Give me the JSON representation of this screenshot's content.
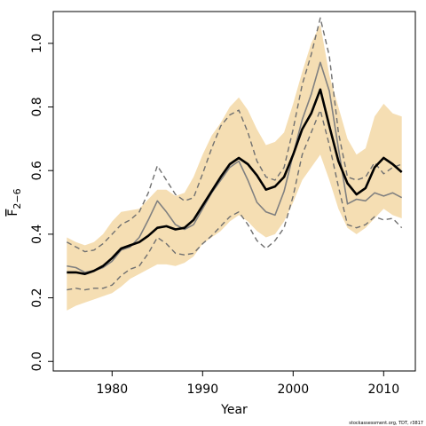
{
  "chart_data": {
    "type": "line",
    "xlabel": "Year",
    "ylabel_main": "F",
    "ylabel_subscript": "2−6",
    "xlim": [
      1973.5,
      2013.5
    ],
    "ylim": [
      -0.03,
      1.1
    ],
    "x_ticks": [
      {
        "value": 1980,
        "label": "1980"
      },
      {
        "value": 1990,
        "label": "1990"
      },
      {
        "value": 2000,
        "label": "2000"
      },
      {
        "value": 2010,
        "label": "2010"
      }
    ],
    "y_ticks": [
      {
        "value": 0.0,
        "label": "0.0"
      },
      {
        "value": 0.2,
        "label": "0.2"
      },
      {
        "value": 0.4,
        "label": "0.4"
      },
      {
        "value": 0.6,
        "label": "0.6"
      },
      {
        "value": 0.8,
        "label": "0.8"
      },
      {
        "value": 1.0,
        "label": "1.0"
      }
    ],
    "x": [
      1975,
      1976,
      1977,
      1978,
      1979,
      1980,
      1981,
      1982,
      1983,
      1984,
      1985,
      1986,
      1987,
      1988,
      1989,
      1990,
      1991,
      1992,
      1993,
      1994,
      1995,
      1996,
      1997,
      1998,
      1999,
      2000,
      2001,
      2002,
      2003,
      2004,
      2005,
      2006,
      2007,
      2008,
      2009,
      2010,
      2011,
      2012
    ],
    "band_upper": [
      0.39,
      0.375,
      0.365,
      0.375,
      0.4,
      0.44,
      0.47,
      0.475,
      0.48,
      0.51,
      0.54,
      0.54,
      0.52,
      0.53,
      0.58,
      0.65,
      0.71,
      0.75,
      0.8,
      0.83,
      0.79,
      0.73,
      0.68,
      0.69,
      0.72,
      0.81,
      0.91,
      1.0,
      1.06,
      0.9,
      0.8,
      0.7,
      0.65,
      0.67,
      0.77,
      0.81,
      0.78,
      0.77
    ],
    "band_lower": [
      0.16,
      0.175,
      0.185,
      0.195,
      0.205,
      0.215,
      0.235,
      0.26,
      0.275,
      0.29,
      0.305,
      0.305,
      0.3,
      0.31,
      0.33,
      0.37,
      0.39,
      0.41,
      0.44,
      0.46,
      0.44,
      0.41,
      0.39,
      0.4,
      0.44,
      0.5,
      0.57,
      0.61,
      0.65,
      0.57,
      0.48,
      0.42,
      0.4,
      0.42,
      0.45,
      0.48,
      0.46,
      0.45
    ],
    "series": [
      {
        "values": [
          0.28,
          0.28,
          0.275,
          0.285,
          0.3,
          0.325,
          0.355,
          0.365,
          0.375,
          0.395,
          0.42,
          0.425,
          0.415,
          0.42,
          0.445,
          0.49,
          0.535,
          0.58,
          0.62,
          0.64,
          0.62,
          0.585,
          0.54,
          0.55,
          0.58,
          0.65,
          0.73,
          0.78,
          0.855,
          0.74,
          0.63,
          0.56,
          0.525,
          0.545,
          0.61,
          0.64,
          0.62,
          0.595
        ],
        "color": "#000000",
        "style": "solid-thick"
      },
      {
        "values": [
          0.3,
          0.295,
          0.28,
          0.285,
          0.295,
          0.315,
          0.35,
          0.36,
          0.39,
          0.445,
          0.505,
          0.47,
          0.43,
          0.415,
          0.43,
          0.48,
          0.53,
          0.57,
          0.61,
          0.63,
          0.57,
          0.5,
          0.47,
          0.46,
          0.535,
          0.65,
          0.76,
          0.84,
          0.94,
          0.85,
          0.67,
          0.495,
          0.51,
          0.505,
          0.53,
          0.52,
          0.53,
          0.515
        ],
        "color": "#808080",
        "style": "solid"
      },
      {
        "values": [
          0.375,
          0.36,
          0.345,
          0.35,
          0.37,
          0.4,
          0.43,
          0.445,
          0.47,
          0.53,
          0.615,
          0.57,
          0.525,
          0.505,
          0.515,
          0.59,
          0.67,
          0.74,
          0.775,
          0.79,
          0.72,
          0.63,
          0.58,
          0.57,
          0.61,
          0.73,
          0.87,
          0.965,
          1.08,
          0.96,
          0.72,
          0.58,
          0.57,
          0.58,
          0.625,
          0.59,
          0.61,
          0.62
        ],
        "color": "#707070",
        "style": "dashed"
      },
      {
        "values": [
          0.225,
          0.23,
          0.225,
          0.23,
          0.23,
          0.24,
          0.27,
          0.29,
          0.3,
          0.34,
          0.39,
          0.37,
          0.34,
          0.335,
          0.34,
          0.37,
          0.395,
          0.425,
          0.455,
          0.47,
          0.43,
          0.38,
          0.355,
          0.38,
          0.42,
          0.52,
          0.65,
          0.72,
          0.79,
          0.68,
          0.55,
          0.43,
          0.42,
          0.43,
          0.455,
          0.445,
          0.45,
          0.42
        ],
        "color": "#707070",
        "style": "dashed"
      }
    ],
    "band_color": "#f5deb3",
    "grid": false
  },
  "credit": "stockassessment.org, TDT, r3817"
}
